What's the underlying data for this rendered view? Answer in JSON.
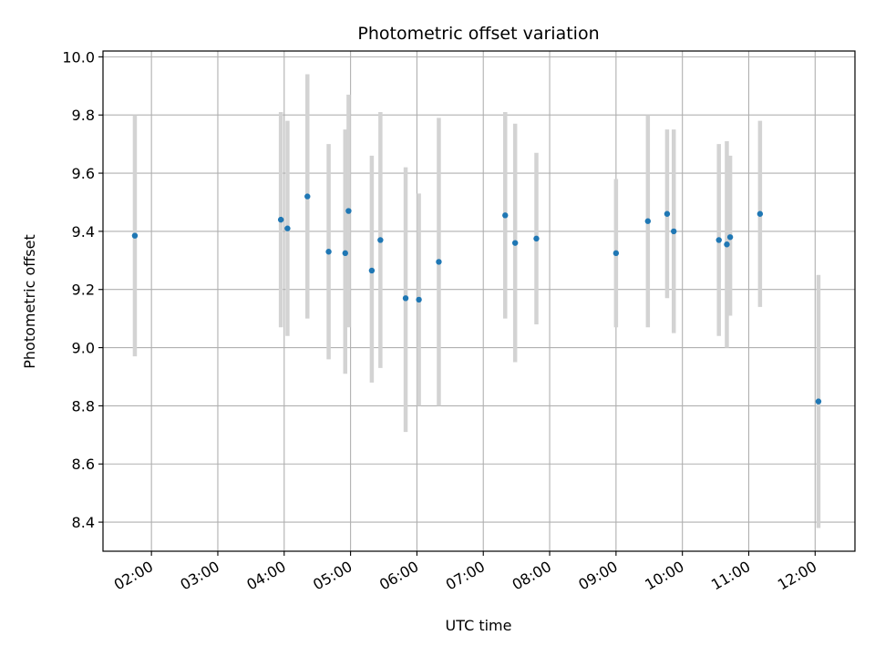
{
  "chart_data": {
    "type": "scatter",
    "title": "Photometric offset variation",
    "xlabel": "UTC time",
    "ylabel": "Photometric offset",
    "x_unit": "hour",
    "xlim": [
      1.27,
      12.6
    ],
    "ylim": [
      8.3,
      10.02
    ],
    "x_ticks": [
      {
        "value": 2,
        "label": "02:00"
      },
      {
        "value": 3,
        "label": "03:00"
      },
      {
        "value": 4,
        "label": "04:00"
      },
      {
        "value": 5,
        "label": "05:00"
      },
      {
        "value": 6,
        "label": "06:00"
      },
      {
        "value": 7,
        "label": "07:00"
      },
      {
        "value": 8,
        "label": "08:00"
      },
      {
        "value": 9,
        "label": "09:00"
      },
      {
        "value": 10,
        "label": "10:00"
      },
      {
        "value": 11,
        "label": "11:00"
      },
      {
        "value": 12,
        "label": "12:00"
      }
    ],
    "y_ticks": [
      {
        "value": 8.4,
        "label": "8.4"
      },
      {
        "value": 8.6,
        "label": "8.6"
      },
      {
        "value": 8.8,
        "label": "8.8"
      },
      {
        "value": 9.0,
        "label": "9.0"
      },
      {
        "value": 9.2,
        "label": "9.2"
      },
      {
        "value": 9.4,
        "label": "9.4"
      },
      {
        "value": 9.6,
        "label": "9.6"
      },
      {
        "value": 9.8,
        "label": "9.8"
      },
      {
        "value": 10.0,
        "label": "10.0"
      }
    ],
    "grid": true,
    "colors": {
      "point": "#1f77b4",
      "errorbar": "#d3d3d3",
      "grid": "#b0b0b0"
    },
    "points": [
      {
        "x": 1.75,
        "y": 9.385,
        "ymin": 8.97,
        "ymax": 9.8
      },
      {
        "x": 3.95,
        "y": 9.44,
        "ymin": 9.07,
        "ymax": 9.81
      },
      {
        "x": 4.05,
        "y": 9.41,
        "ymin": 9.04,
        "ymax": 9.78
      },
      {
        "x": 4.35,
        "y": 9.52,
        "ymin": 9.1,
        "ymax": 9.94
      },
      {
        "x": 4.67,
        "y": 9.33,
        "ymin": 8.96,
        "ymax": 9.7
      },
      {
        "x": 4.92,
        "y": 9.325,
        "ymin": 8.91,
        "ymax": 9.75
      },
      {
        "x": 4.97,
        "y": 9.47,
        "ymin": 9.07,
        "ymax": 9.87
      },
      {
        "x": 5.32,
        "y": 9.265,
        "ymin": 8.88,
        "ymax": 9.66
      },
      {
        "x": 5.45,
        "y": 9.37,
        "ymin": 8.93,
        "ymax": 9.81
      },
      {
        "x": 5.83,
        "y": 9.17,
        "ymin": 8.71,
        "ymax": 9.62
      },
      {
        "x": 6.03,
        "y": 9.165,
        "ymin": 8.8,
        "ymax": 9.53
      },
      {
        "x": 6.33,
        "y": 9.295,
        "ymin": 8.8,
        "ymax": 9.79
      },
      {
        "x": 7.33,
        "y": 9.455,
        "ymin": 9.1,
        "ymax": 9.81
      },
      {
        "x": 7.48,
        "y": 9.36,
        "ymin": 8.95,
        "ymax": 9.77
      },
      {
        "x": 7.8,
        "y": 9.375,
        "ymin": 9.08,
        "ymax": 9.67
      },
      {
        "x": 9.0,
        "y": 9.325,
        "ymin": 9.07,
        "ymax": 9.58
      },
      {
        "x": 9.48,
        "y": 9.435,
        "ymin": 9.07,
        "ymax": 9.8
      },
      {
        "x": 9.77,
        "y": 9.46,
        "ymin": 9.17,
        "ymax": 9.75
      },
      {
        "x": 9.87,
        "y": 9.4,
        "ymin": 9.05,
        "ymax": 9.75
      },
      {
        "x": 10.55,
        "y": 9.37,
        "ymin": 9.04,
        "ymax": 9.7
      },
      {
        "x": 10.67,
        "y": 9.355,
        "ymin": 9.0,
        "ymax": 9.71
      },
      {
        "x": 10.72,
        "y": 9.38,
        "ymin": 9.11,
        "ymax": 9.66
      },
      {
        "x": 11.17,
        "y": 9.46,
        "ymin": 9.14,
        "ymax": 9.78
      },
      {
        "x": 12.05,
        "y": 8.815,
        "ymin": 8.38,
        "ymax": 9.25
      }
    ]
  }
}
